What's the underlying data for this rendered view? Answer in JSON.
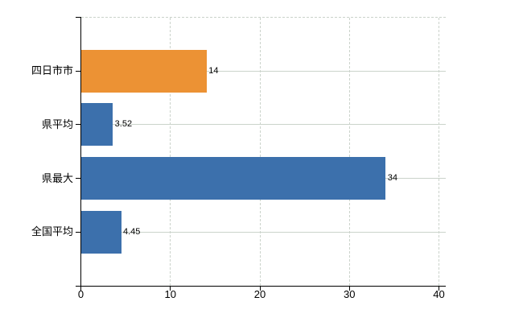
{
  "chart_data": {
    "type": "bar",
    "orientation": "horizontal",
    "title": "",
    "xlabel": "",
    "ylabel": "",
    "categories": [
      "四日市市",
      "県平均",
      "県最大",
      "全国平均"
    ],
    "values": [
      14,
      3.52,
      34,
      4.45
    ],
    "value_labels": [
      "14",
      "3.52",
      "34",
      "4.45"
    ],
    "bar_colors": [
      "#ec9234",
      "#3c70ac",
      "#3c70ac",
      "#3c70ac"
    ],
    "xlim": [
      0,
      40
    ],
    "x_ticks": [
      0,
      10,
      20,
      30,
      40
    ],
    "x_tick_labels": [
      "0",
      "10",
      "20",
      "30",
      "40"
    ],
    "grid": true,
    "legend_position": "none",
    "colors": {
      "highlight_bar": "#ec9234",
      "default_bar": "#3c70ac",
      "gridline": "#cbd3cb",
      "axis": "#000000",
      "text": "#000000",
      "background": "#ffffff"
    }
  }
}
